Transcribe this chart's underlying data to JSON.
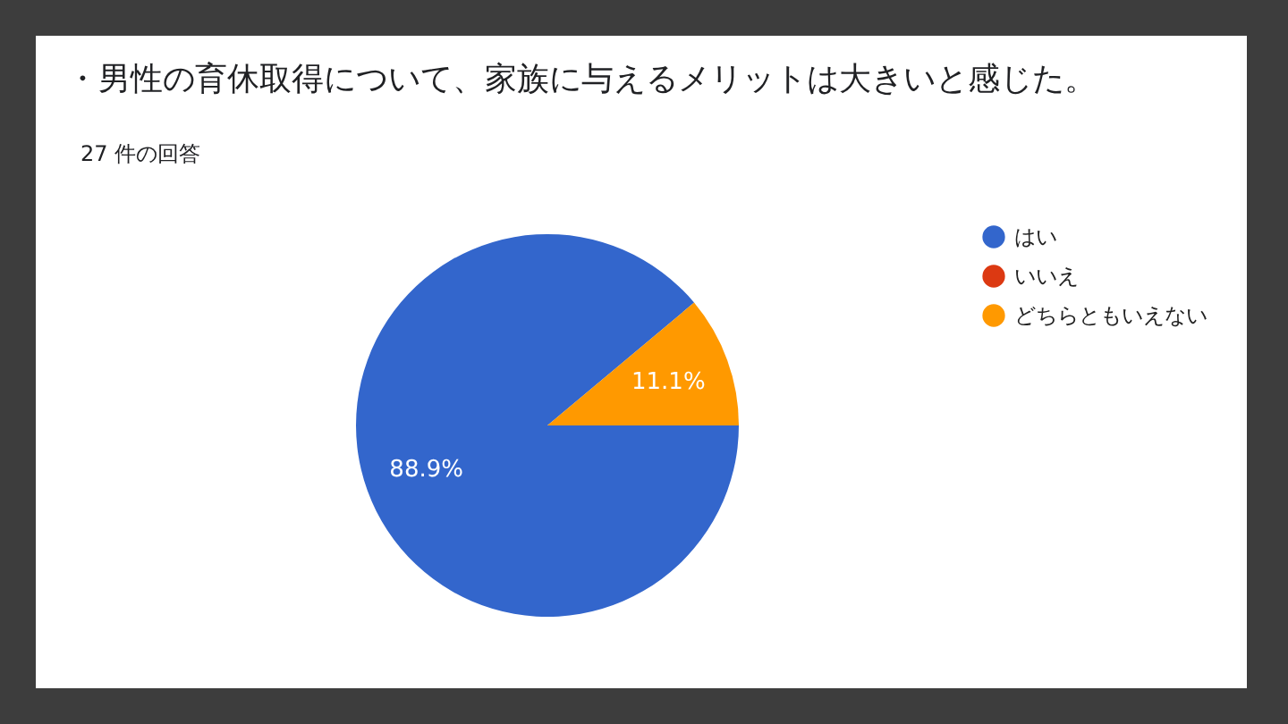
{
  "chart_data": {
    "type": "pie",
    "title": "・男性の育休取得について、家族に与えるメリットは大きいと感じた。",
    "subtitle": "27 件の回答",
    "categories": [
      "はい",
      "いいえ",
      "どちらともいえない"
    ],
    "values": [
      88.9,
      0,
      11.1
    ],
    "colors": [
      "#3366cc",
      "#dc3912",
      "#ff9900"
    ],
    "value_labels": [
      "88.9%",
      null,
      "11.1%"
    ],
    "legend": "right"
  }
}
